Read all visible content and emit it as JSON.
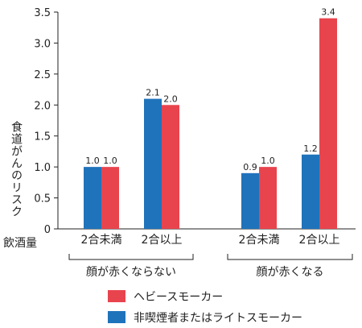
{
  "chart_data": {
    "type": "bar",
    "ylabel": "食道がんのリスク",
    "xlabel": "飲酒量",
    "ylim": [
      0,
      3.5
    ],
    "yticks": [
      "0",
      "0.5",
      "1.0",
      "1.5",
      "2.0",
      "2.5",
      "3.0",
      "3.5"
    ],
    "grid": false,
    "legend_position": "bottom",
    "groups": [
      {
        "label": "顔が赤くならない",
        "categories": [
          "2合未満",
          "2合以上"
        ]
      },
      {
        "label": "顔が赤くなる",
        "categories": [
          "2合未満",
          "2合以上"
        ]
      }
    ],
    "categories": [
      "2合未満",
      "2合以上",
      "2合未満",
      "2合以上"
    ],
    "series": [
      {
        "name": "非喫煙者またはライトスモーカー",
        "color": "#1f73bb",
        "values": [
          1.0,
          2.1,
          0.9,
          1.2
        ],
        "labels": [
          "1.0",
          "2.1",
          "0.9",
          "1.2"
        ]
      },
      {
        "name": "ヘビースモーカー",
        "color": "#e8444d",
        "values": [
          1.0,
          2.0,
          1.0,
          3.4
        ],
        "labels": [
          "1.0",
          "2.0",
          "1.0",
          "3.4"
        ]
      }
    ]
  }
}
